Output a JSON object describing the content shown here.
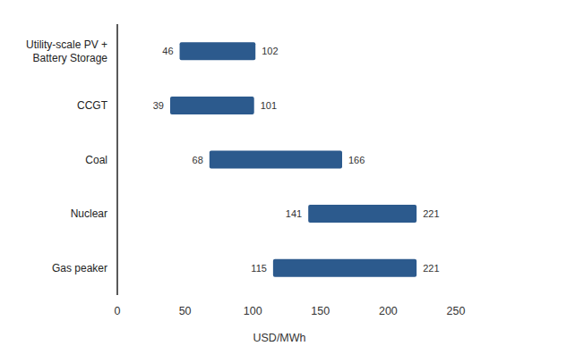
{
  "chart_data": {
    "type": "bar",
    "orientation": "horizontal",
    "categories": [
      "Utility-scale PV +\nBattery Storage",
      "CCGT",
      "Coal",
      "Nuclear",
      "Gas peaker"
    ],
    "low": [
      46,
      39,
      68,
      141,
      115
    ],
    "high": [
      102,
      101,
      166,
      221,
      221
    ],
    "color": "#2c5a8d",
    "xlabel": "USD/MWh",
    "xlim": [
      0,
      250
    ],
    "xticks": [
      0,
      50,
      100,
      150,
      200,
      250
    ],
    "grid": false,
    "data_labels": true
  }
}
